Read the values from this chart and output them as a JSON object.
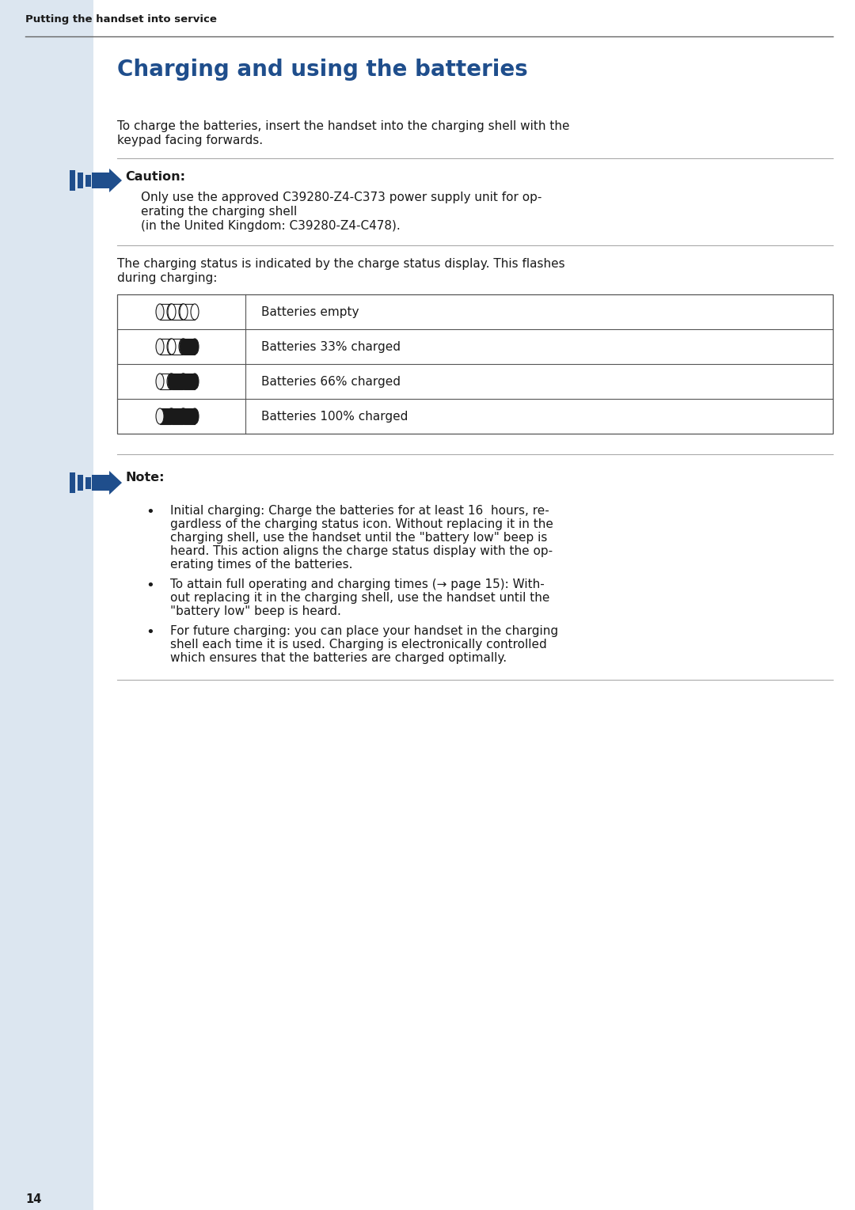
{
  "page_bg": "#ffffff",
  "sidebar_color": "#dce6f0",
  "header_text": "Putting the handset into service",
  "title": "Charging and using the batteries",
  "title_color": "#1F4E8C",
  "body_color": "#1a1a1a",
  "intro_text_line1": "To charge the batteries, insert the handset into the charging shell with the",
  "intro_text_line2": "keypad facing forwards.",
  "caution_label": "Caution:",
  "caution_lines": [
    "Only use the approved C39280-Z4-C373 power supply unit for op-",
    "erating the charging shell",
    "(in the United Kingdom: C39280-Z4-C478)."
  ],
  "charging_intro_line1": "The charging status is indicated by the charge status display. This flashes",
  "charging_intro_line2": "during charging:",
  "table_rows": [
    "Batteries empty",
    "Batteries 33% charged",
    "Batteries 66% charged",
    "Batteries 100% charged"
  ],
  "note_label": "Note:",
  "note_bullet1_lines": [
    "Initial charging: Charge the batteries for at least 16  hours, re-",
    "gardless of the charging status icon. Without replacing it in the",
    "charging shell, use the handset until the \"battery low\" beep is",
    "heard. This action aligns the charge status display with the op-",
    "erating times of the batteries."
  ],
  "note_bullet2_lines": [
    "To attain full operating and charging times (→ page 15): With-",
    "out replacing it in the charging shell, use the handset until the",
    "\"battery low\" beep is heard."
  ],
  "note_bullet3_lines": [
    "For future charging: you can place your handset in the charging",
    "shell each time it is used. Charging is electronically controlled",
    "which ensures that the batteries are charged optimally."
  ],
  "page_number": "14",
  "arrow_color": "#1F4E8C",
  "line_color": "#aaaaaa",
  "font_size_header": 9.5,
  "font_size_title": 20,
  "font_size_body": 11,
  "font_size_caution_label": 11.5,
  "font_size_page": 10.5
}
